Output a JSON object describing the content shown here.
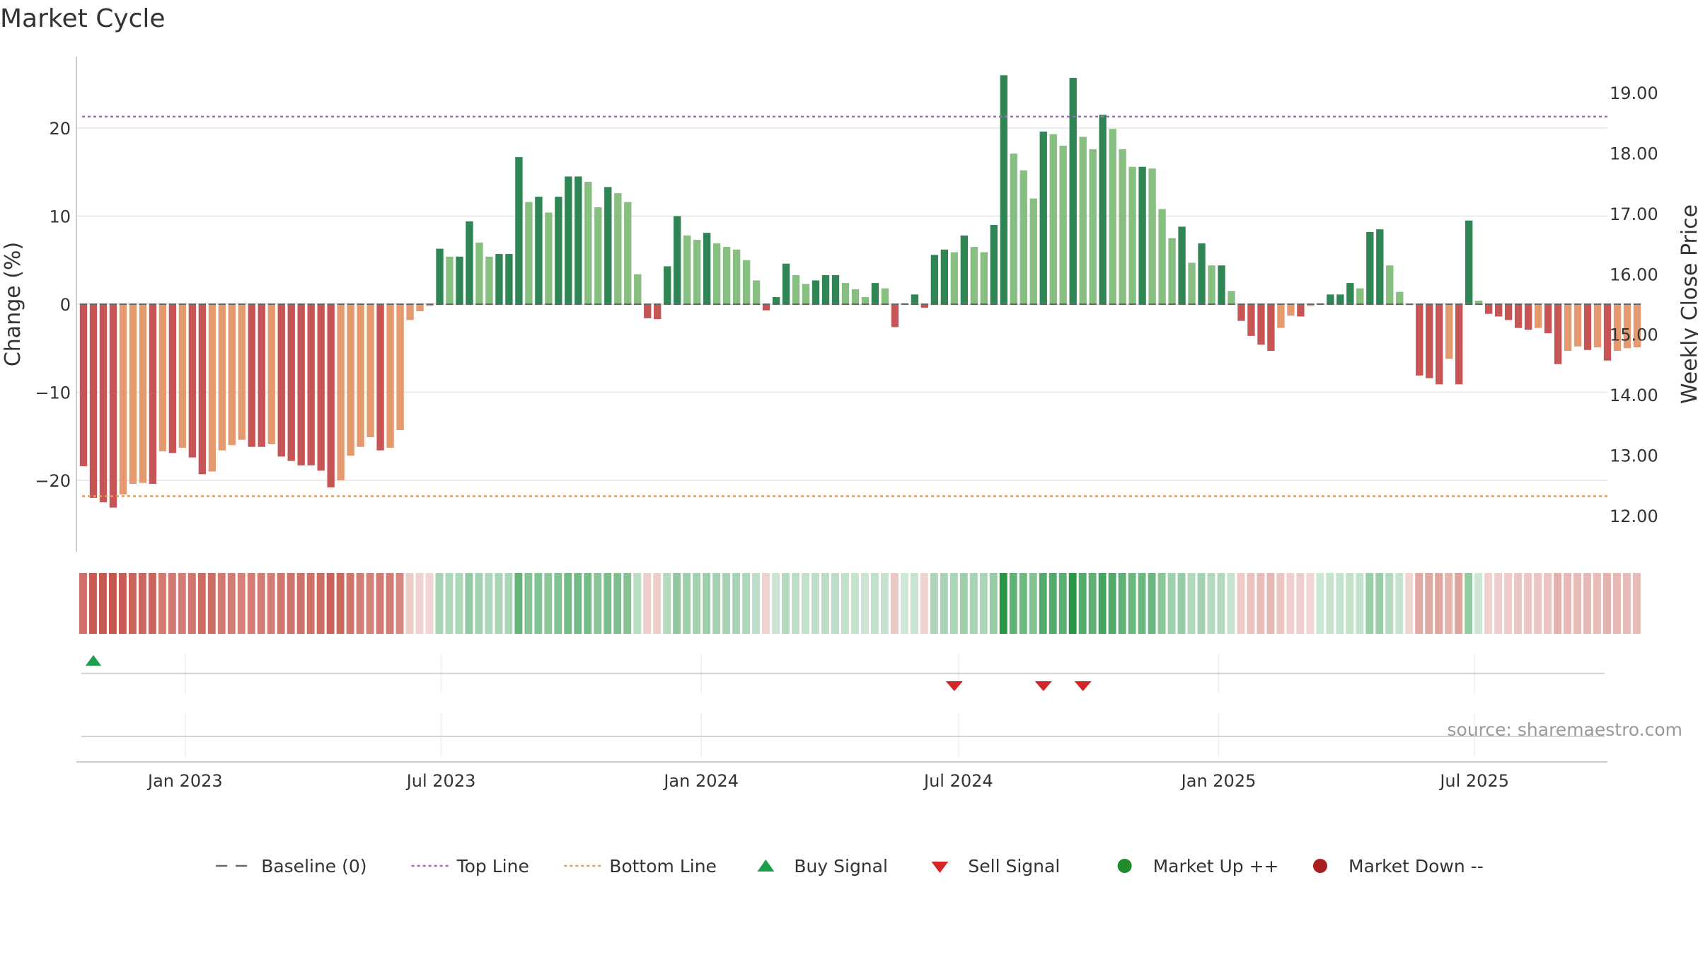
{
  "title": "Market Cycle",
  "source": "source: sharemaestro.com",
  "colors": {
    "up_strong": "#2f8554",
    "up_light": "#86bf7f",
    "down_strong": "#c85555",
    "down_light": "#e5996f",
    "top_line": "#a06cb8",
    "bottom_line": "#e0a060",
    "buy": "#1e9e4a",
    "sell": "#d32626",
    "market_up": "#1f8b2a",
    "market_down": "#a8201f"
  },
  "legend": [
    {
      "label": "Baseline (0)",
      "symbol": "dash",
      "color": "#666666"
    },
    {
      "label": "Top Line",
      "symbol": "dotted",
      "color": "#a06cb8"
    },
    {
      "label": "Bottom Line",
      "symbol": "dotted",
      "color": "#e0a060"
    },
    {
      "label": "Buy Signal",
      "symbol": "triangle-up",
      "color": "#1e9e4a"
    },
    {
      "label": "Sell Signal",
      "symbol": "triangle-down",
      "color": "#d32626"
    },
    {
      "label": "Market Up ++",
      "symbol": "circle",
      "color": "#1f8b2a"
    },
    {
      "label": "Market Down --",
      "symbol": "circle",
      "color": "#a8201f"
    }
  ],
  "chart_data": {
    "type": "bar",
    "title": "Market Cycle",
    "ylabel": "Change (%)",
    "y2label": "Weekly Close Price",
    "ylim": [
      -28.5,
      28
    ],
    "y2lim": [
      11.4,
      19.6
    ],
    "yticks": [
      -20,
      -10,
      0,
      10,
      20
    ],
    "y2ticks": [
      "12.00",
      "13.00",
      "14.00",
      "15.00",
      "16.00",
      "17.00",
      "18.00",
      "19.00"
    ],
    "x_start": "2022-10-21",
    "x_range": [
      "2022-10-16",
      "2025-10-03"
    ],
    "x_interval_days": 7,
    "xticks": [
      {
        "label": "Jan 2023",
        "date": "2023-01-01"
      },
      {
        "label": "Jul 2023",
        "date": "2023-07-01"
      },
      {
        "label": "Jan 2024",
        "date": "2024-01-01"
      },
      {
        "label": "Jul 2024",
        "date": "2024-07-01"
      },
      {
        "label": "Jan 2025",
        "date": "2025-01-01"
      },
      {
        "label": "Jul 2025",
        "date": "2025-07-01"
      }
    ],
    "top_line": 21.3,
    "bottom_line": -21.8,
    "baseline": 0,
    "grid": true,
    "legend_position": "bottom",
    "values": [
      -18.4,
      -22,
      -22.5,
      -23.1,
      -21.6,
      -20.4,
      -20.3,
      -20.4,
      -16.7,
      -16.9,
      -16.3,
      -17.4,
      -19.3,
      -19,
      -16.6,
      -16,
      -15.4,
      -16.2,
      -16.2,
      -15.9,
      -17.3,
      -17.8,
      -18.3,
      -18.3,
      -18.9,
      -20.8,
      -20,
      -17.2,
      -16.2,
      -15.1,
      -16.6,
      -16.3,
      -14.3,
      -1.8,
      -0.8,
      -0.2,
      6.3,
      5.4,
      5.4,
      9.4,
      7,
      5.4,
      5.7,
      5.7,
      16.7,
      11.6,
      12.2,
      10.4,
      12.2,
      14.5,
      14.5,
      13.9,
      11,
      13.3,
      12.6,
      11.6,
      3.4,
      -1.6,
      -1.7,
      4.3,
      10,
      7.8,
      7.3,
      8.1,
      6.9,
      6.5,
      6.2,
      5,
      2.7,
      -0.7,
      0.8,
      4.6,
      3.3,
      2.3,
      2.7,
      3.3,
      3.3,
      2.4,
      1.7,
      0.8,
      2.4,
      1.8,
      -2.6,
      0.1,
      1.1,
      -0.4,
      5.6,
      6.2,
      5.9,
      7.8,
      6.5,
      5.9,
      9,
      26,
      17.1,
      15.2,
      12,
      19.6,
      19.3,
      18,
      25.7,
      19,
      17.6,
      21.5,
      19.9,
      17.6,
      15.6,
      15.6,
      15.4,
      10.8,
      7.5,
      8.8,
      4.7,
      6.9,
      4.4,
      4.4,
      1.5,
      -1.9,
      -3.6,
      -4.6,
      -5.3,
      -2.7,
      -1.3,
      -1.4,
      -0.2,
      0.1,
      1.1,
      1.1,
      2.4,
      1.8,
      8.2,
      8.5,
      4.4,
      1.4,
      -0.1,
      -8.1,
      -8.4,
      -9.1,
      -6.2,
      -9.1,
      9.5,
      0.4,
      -1.1,
      -1.4,
      -1.8,
      -2.7,
      -2.9,
      -2.7,
      -3.3,
      -6.8,
      -5.3,
      -4.8,
      -5.2,
      -4.9,
      -6.4,
      -5.3,
      -5,
      -4.9
    ],
    "signals": [
      {
        "type": "buy",
        "date": "2022-10-28"
      },
      {
        "type": "sell",
        "date": "2024-06-28"
      },
      {
        "type": "sell",
        "date": "2024-08-30"
      },
      {
        "type": "sell",
        "date": "2024-09-27"
      }
    ]
  }
}
